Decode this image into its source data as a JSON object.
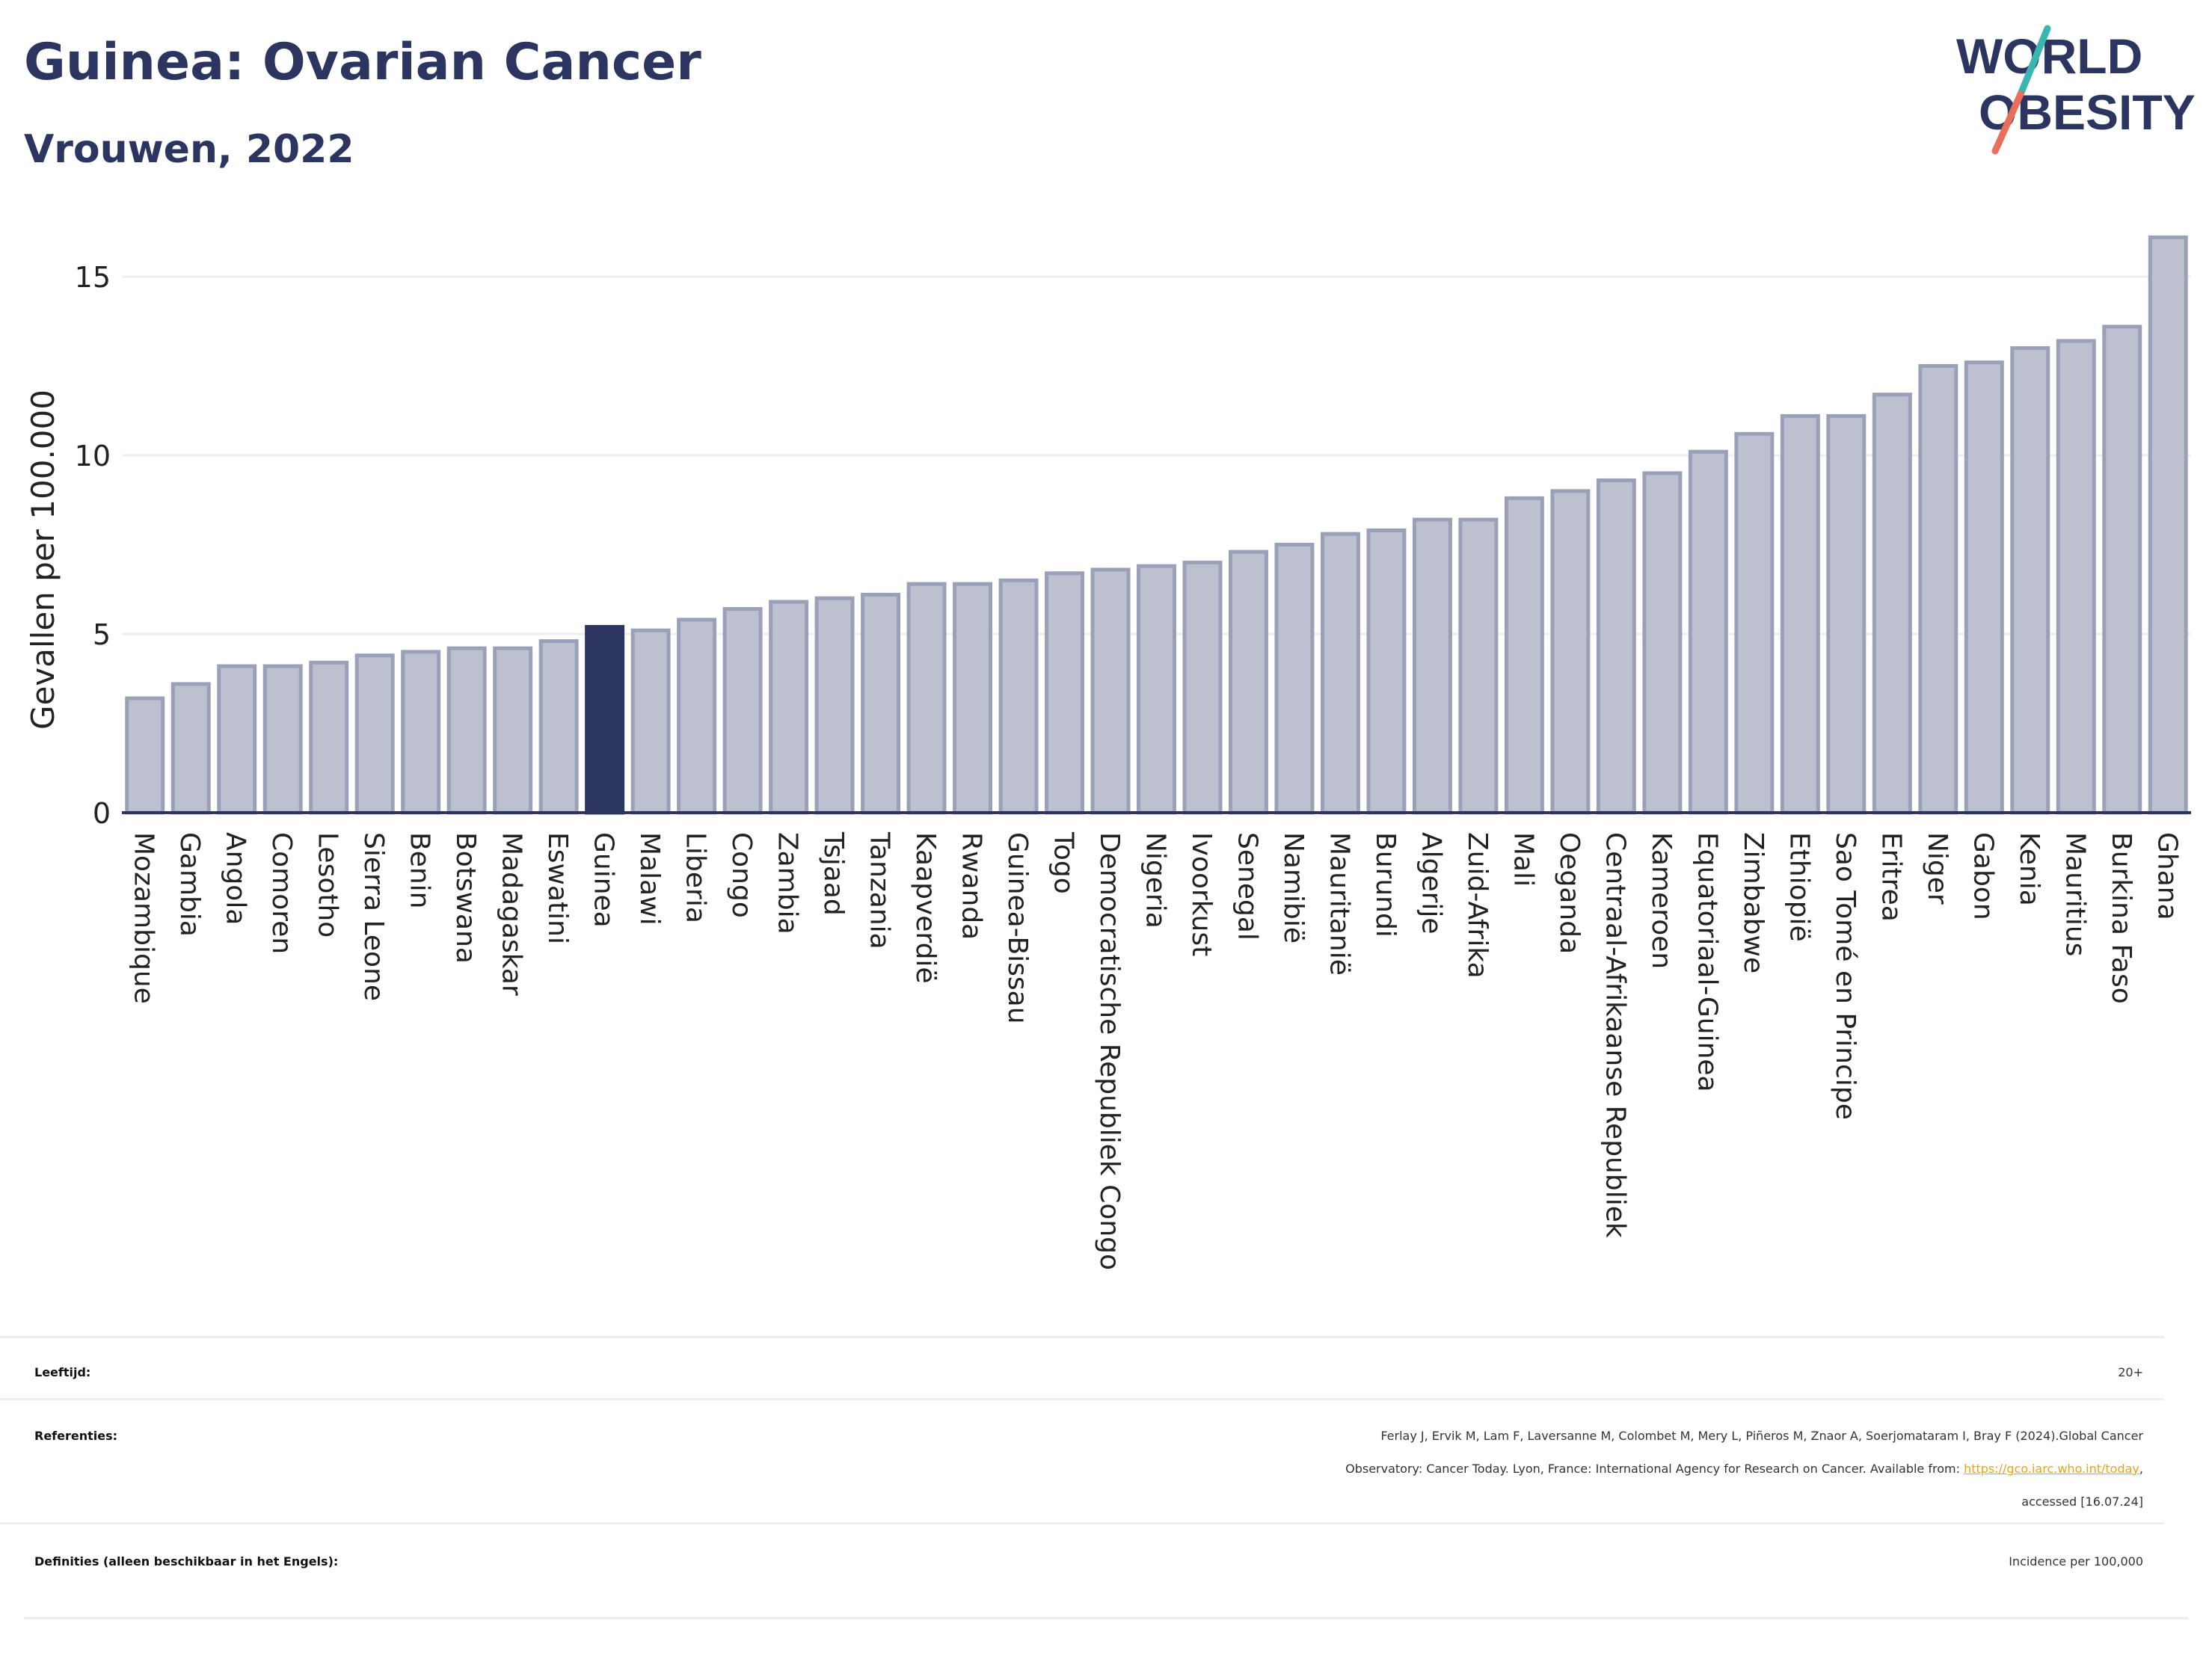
{
  "header": {
    "title": "Guinea: Ovarian Cancer",
    "subtitle": "Vrouwen, 2022"
  },
  "logo": {
    "line1": "WORLD",
    "line2": "OBESITY",
    "colors": {
      "text": "#2b3560",
      "slash_top": "#3ab5b0",
      "slash_bottom": "#e8705a"
    }
  },
  "chart_data": {
    "type": "bar",
    "ylabel": "Gevallen per 100.000",
    "xlabel": "",
    "ylim": [
      0,
      16.5
    ],
    "yticks": [
      0,
      5,
      10,
      15
    ],
    "grid": true,
    "highlight": "Guinea",
    "colors": {
      "bar": "#bcc0cf",
      "bar_edge": "#9aa0b8",
      "highlight": "#2b3560"
    },
    "categories": [
      "Mozambique",
      "Gambia",
      "Angola",
      "Comoren",
      "Lesotho",
      "Sierra Leone",
      "Benin",
      "Botswana",
      "Madagaskar",
      "Eswatini",
      "Guinea",
      "Malawi",
      "Liberia",
      "Congo",
      "Zambia",
      "Tsjaad",
      "Tanzania",
      "Kaapverdië",
      "Rwanda",
      "Guinea-Bissau",
      "Togo",
      "Democratische Republiek Congo",
      "Nigeria",
      "Ivoorkust",
      "Senegal",
      "Namibië",
      "Mauritanië",
      "Burundi",
      "Algerije",
      "Zuid-Afrika",
      "Mali",
      "Oeganda",
      "Centraal-Afrikaanse Republiek",
      "Kameroen",
      "Equatoriaal-Guinea",
      "Zimbabwe",
      "Ethiopië",
      "Sao Tomé en Principe",
      "Eritrea",
      "Niger",
      "Gabon",
      "Kenia",
      "Mauritius",
      "Burkina Faso",
      "Ghana"
    ],
    "values": [
      3.2,
      3.6,
      4.1,
      4.1,
      4.2,
      4.4,
      4.5,
      4.6,
      4.6,
      4.8,
      5.2,
      5.1,
      5.4,
      5.7,
      5.9,
      6.0,
      6.1,
      6.4,
      6.4,
      6.5,
      6.7,
      6.8,
      6.9,
      7.0,
      7.3,
      7.5,
      7.8,
      7.9,
      8.2,
      8.2,
      8.8,
      9.0,
      9.3,
      9.5,
      10.1,
      10.6,
      11.1,
      11.1,
      11.7,
      12.5,
      12.6,
      13.0,
      13.2,
      13.6,
      16.1
    ]
  },
  "info": {
    "age_label": "Leeftijd:",
    "age_value": "20+",
    "refs_label": "Referenties:",
    "refs_text_1": "Ferlay J, Ervik M, Lam F, Laversanne M, Colombet M, Mery L, Piñeros M, Znaor A, Soerjomataram I, Bray F (2024).Global Cancer",
    "refs_text_2": "Observatory: Cancer Today. Lyon, France: International Agency for Research on Cancer. Available from: ",
    "refs_link": "https://gco.iarc.who.int/today",
    "refs_text_3": ",",
    "refs_text_4": "accessed [16.07.24]",
    "defs_label": "Definities (alleen beschikbaar in het Engels):",
    "defs_value": "Incidence per 100,000"
  }
}
